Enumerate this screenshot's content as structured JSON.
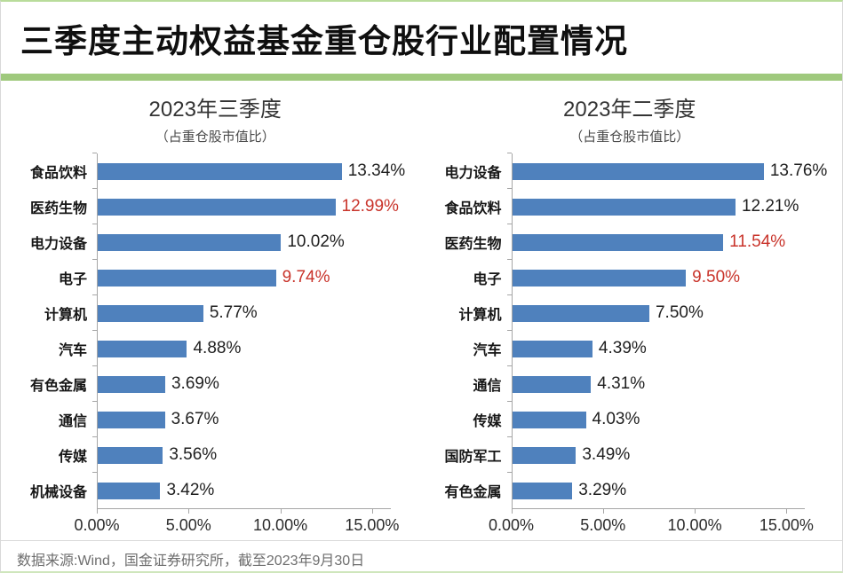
{
  "page": {
    "title": "三季度主动权益基金重仓股行业配置情况"
  },
  "colors": {
    "bar_blue": "#4f81bd",
    "value_red": "#c9342b",
    "value_default": "#1f1f1f",
    "accent_green": "#9fc97d",
    "axis_gray": "#a6a6a6"
  },
  "chart_data": [
    {
      "type": "bar",
      "orientation": "horizontal",
      "title": "2023年三季度",
      "subtitle": "（占重仓股市值比）",
      "categories": [
        "食品饮料",
        "医药生物",
        "电力设备",
        "电子",
        "计算机",
        "汽车",
        "有色金属",
        "通信",
        "传媒",
        "机械设备"
      ],
      "values": [
        13.34,
        12.99,
        10.02,
        9.74,
        5.77,
        4.88,
        3.69,
        3.67,
        3.56,
        3.42
      ],
      "value_labels": [
        "13.34%",
        "12.99%",
        "10.02%",
        "9.74%",
        "5.77%",
        "4.88%",
        "3.69%",
        "3.67%",
        "3.56%",
        "3.42%"
      ],
      "red_value_indexes": [
        1,
        3
      ],
      "xlim": [
        0,
        16
      ],
      "tick_values": [
        0,
        5,
        10,
        15
      ],
      "tick_labels": [
        "0.00%",
        "5.00%",
        "10.00%",
        "15.00%"
      ],
      "grid": false,
      "legend": "none"
    },
    {
      "type": "bar",
      "orientation": "horizontal",
      "title": "2023年二季度",
      "subtitle": "（占重仓股市值比）",
      "categories": [
        "电力设备",
        "食品饮料",
        "医药生物",
        "电子",
        "计算机",
        "汽车",
        "通信",
        "传媒",
        "国防军工",
        "有色金属"
      ],
      "values": [
        13.76,
        12.21,
        11.54,
        9.5,
        7.5,
        4.39,
        4.31,
        4.03,
        3.49,
        3.29
      ],
      "value_labels": [
        "13.76%",
        "12.21%",
        "11.54%",
        "9.50%",
        "7.50%",
        "4.39%",
        "4.31%",
        "4.03%",
        "3.49%",
        "3.29%"
      ],
      "red_value_indexes": [
        2,
        3
      ],
      "xlim": [
        0,
        16
      ],
      "tick_values": [
        0,
        5,
        10,
        15
      ],
      "tick_labels": [
        "0.00%",
        "5.00%",
        "10.00%",
        "15.00%"
      ],
      "grid": false,
      "legend": "none"
    }
  ],
  "footer": {
    "source": "数据来源:Wind，国金证券研究所，截至2023年9月30日"
  }
}
